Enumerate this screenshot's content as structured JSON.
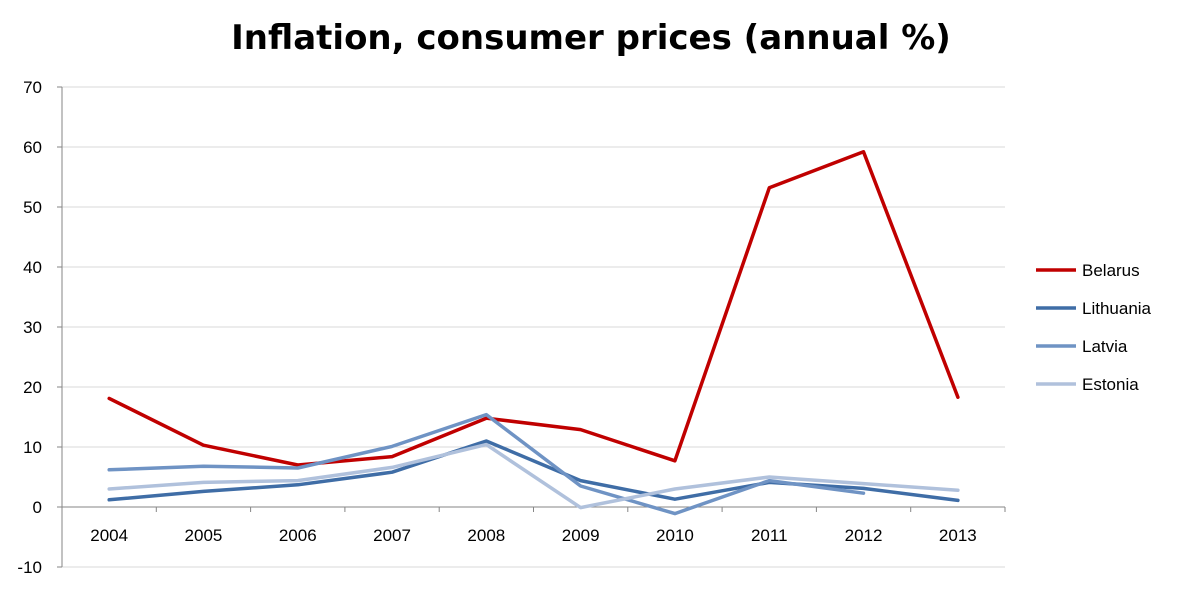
{
  "chart_data": {
    "type": "line",
    "title": "Inflation, consumer prices (annual %)",
    "xlabel": "",
    "ylabel": "",
    "ylim": [
      -10,
      70
    ],
    "yticks": [
      -10,
      0,
      10,
      20,
      30,
      40,
      50,
      60,
      70
    ],
    "categories": [
      "2004",
      "2005",
      "2006",
      "2007",
      "2008",
      "2009",
      "2010",
      "2011",
      "2012",
      "2013"
    ],
    "grid": true,
    "legend_position": "right",
    "series": [
      {
        "name": "Belarus",
        "color": "#c00000",
        "values": [
          18.1,
          10.3,
          7.0,
          8.4,
          14.8,
          12.9,
          7.7,
          53.2,
          59.2,
          18.3
        ]
      },
      {
        "name": "Lithuania",
        "color": "#3f6da6",
        "values": [
          1.2,
          2.6,
          3.7,
          5.8,
          11.0,
          4.4,
          1.3,
          4.1,
          3.1,
          1.1
        ]
      },
      {
        "name": "Latvia",
        "color": "#6f93c4",
        "values": [
          6.2,
          6.8,
          6.5,
          10.1,
          15.4,
          3.5,
          -1.1,
          4.4,
          2.3,
          null
        ]
      },
      {
        "name": "Estonia",
        "color": "#b0c1dc",
        "values": [
          3.0,
          4.1,
          4.4,
          6.6,
          10.4,
          -0.1,
          3.0,
          5.0,
          3.9,
          2.8
        ]
      }
    ]
  }
}
